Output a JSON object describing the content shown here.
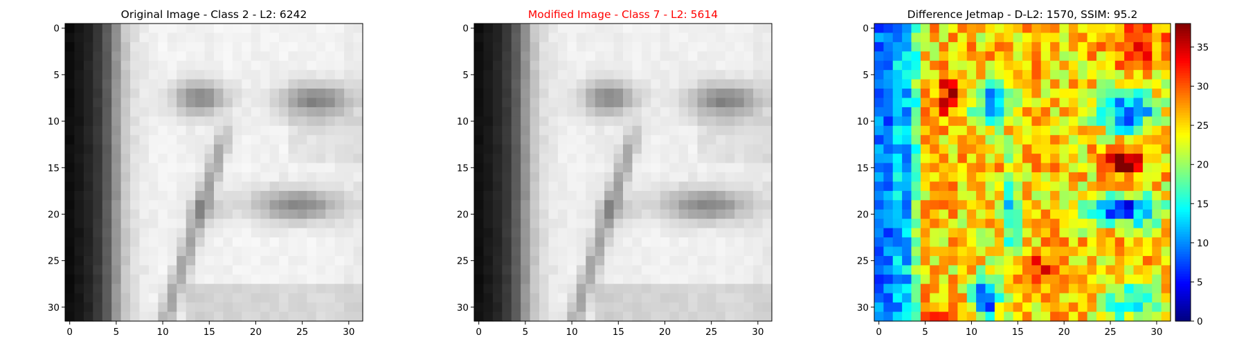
{
  "chart_data": [
    {
      "type": "heatmap",
      "title": "Original Image - Class 2 - L2: 6242",
      "title_color": "#000000",
      "colormap": "gray",
      "xlim": [
        0,
        31
      ],
      "ylim": [
        0,
        31
      ],
      "xticks": [
        "0",
        "5",
        "10",
        "15",
        "20",
        "25",
        "30"
      ],
      "yticks": [
        "0",
        "5",
        "10",
        "15",
        "20",
        "25",
        "30"
      ]
    },
    {
      "type": "heatmap",
      "title": "Modified Image - Class 7 - L2: 5614",
      "title_color": "#ff0000",
      "colormap": "gray",
      "xlim": [
        0,
        31
      ],
      "ylim": [
        0,
        31
      ],
      "xticks": [
        "0",
        "5",
        "10",
        "15",
        "20",
        "25",
        "30"
      ],
      "yticks": [
        "0",
        "5",
        "10",
        "15",
        "20",
        "25",
        "30"
      ]
    },
    {
      "type": "heatmap",
      "title": "Difference Jetmap - D-L2: 1570, SSIM: 95.2",
      "title_color": "#000000",
      "colormap": "jet",
      "xlim": [
        0,
        31
      ],
      "ylim": [
        0,
        31
      ],
      "xticks": [
        "0",
        "5",
        "10",
        "15",
        "20",
        "25",
        "30"
      ],
      "yticks": [
        "0",
        "5",
        "10",
        "15",
        "20",
        "25",
        "30"
      ],
      "colorbar": {
        "min": 0,
        "max": 38,
        "ticks": [
          "0",
          "5",
          "10",
          "15",
          "20",
          "25",
          "30",
          "35"
        ]
      }
    }
  ]
}
